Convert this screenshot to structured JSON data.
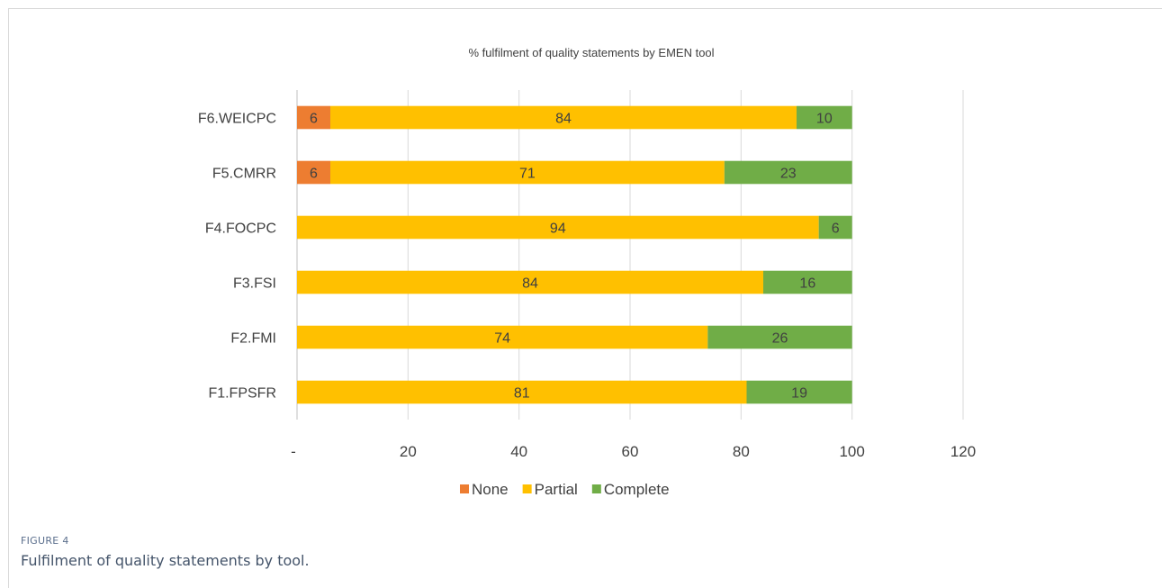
{
  "figure": {
    "label": "FIGURE 4",
    "caption": "Fulfilment of quality statements by tool."
  },
  "chart_data": {
    "type": "bar",
    "orientation": "horizontal",
    "stacked": true,
    "title": "% fulfilment of quality statements by EMEN tool",
    "categories": [
      "F1.FPSFR",
      "F2.FMI",
      "F3.FSI",
      "F4.FOCPC",
      "F5.CMRR",
      "F6.WEICPC"
    ],
    "series": [
      {
        "name": "None",
        "color": "#ed7d31",
        "values": [
          0,
          0,
          0,
          0,
          6,
          6
        ],
        "labels": [
          "-",
          "-",
          "-",
          "-",
          "6",
          "6"
        ]
      },
      {
        "name": "Partial",
        "color": "#ffc000",
        "values": [
          81,
          74,
          84,
          94,
          71,
          84
        ],
        "labels": [
          "81",
          "74",
          "84",
          "94",
          "71",
          "84"
        ]
      },
      {
        "name": "Complete",
        "color": "#70ad47",
        "values": [
          19,
          26,
          16,
          6,
          23,
          10
        ],
        "labels": [
          "19",
          "26",
          "16",
          "6",
          "23",
          "10"
        ]
      }
    ],
    "xlim": [
      0,
      120
    ],
    "xticks": [
      0,
      20,
      40,
      60,
      80,
      100,
      120
    ],
    "xtick_labels": [
      "-",
      "20",
      "40",
      "60",
      "80",
      "100",
      "120"
    ],
    "grid": "vertical",
    "legend": "bottom"
  }
}
